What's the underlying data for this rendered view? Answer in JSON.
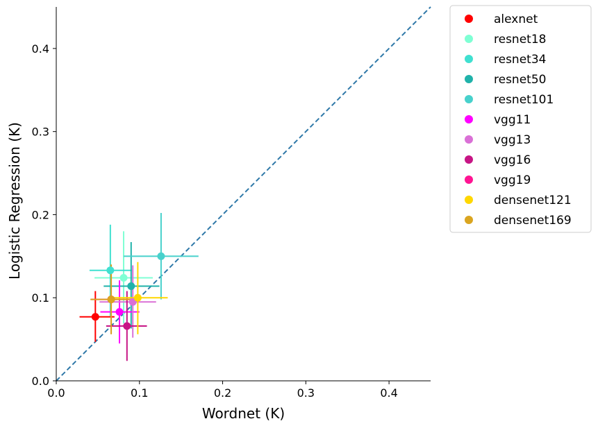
{
  "chart_data": {
    "type": "scatter",
    "title": "",
    "xlabel": "Wordnet (K)",
    "ylabel": "Logistic Regression (K)",
    "xlim": [
      0,
      0.45
    ],
    "ylim": [
      0,
      0.45
    ],
    "xticks": [
      "0.0",
      "0.1",
      "0.2",
      "0.3",
      "0.4"
    ],
    "yticks": [
      "0.0",
      "0.1",
      "0.2",
      "0.3",
      "0.4"
    ],
    "grid": false,
    "legend_position": "outside-top-right",
    "reference_line": {
      "type": "identity",
      "style": "dashed",
      "color": "#2e78a8"
    },
    "series": [
      {
        "name": "alexnet",
        "color": "#ff0000",
        "x": 0.047,
        "y": 0.077,
        "xerr": [
          0.028,
          0.07
        ],
        "yerr": [
          0.047,
          0.108
        ]
      },
      {
        "name": "resnet18",
        "color": "#7fffd4",
        "x": 0.081,
        "y": 0.124,
        "xerr": [
          0.046,
          0.116
        ],
        "yerr": [
          0.069,
          0.18
        ]
      },
      {
        "name": "resnet34",
        "color": "#40e0d0",
        "x": 0.065,
        "y": 0.133,
        "xerr": [
          0.04,
          0.091
        ],
        "yerr": [
          0.078,
          0.188
        ]
      },
      {
        "name": "resnet50",
        "color": "#20b2aa",
        "x": 0.09,
        "y": 0.114,
        "xerr": [
          0.057,
          0.124
        ],
        "yerr": [
          0.063,
          0.167
        ]
      },
      {
        "name": "resnet101",
        "color": "#48d1cc",
        "x": 0.126,
        "y": 0.15,
        "xerr": [
          0.081,
          0.171
        ],
        "yerr": [
          0.098,
          0.202
        ]
      },
      {
        "name": "vgg11",
        "color": "#ff00ff",
        "x": 0.076,
        "y": 0.083,
        "xerr": [
          0.053,
          0.1
        ],
        "yerr": [
          0.045,
          0.121
        ]
      },
      {
        "name": "vgg13",
        "color": "#da70d6",
        "x": 0.092,
        "y": 0.095,
        "xerr": [
          0.052,
          0.12
        ],
        "yerr": [
          0.052,
          0.139
        ]
      },
      {
        "name": "vgg16",
        "color": "#c71585",
        "x": 0.085,
        "y": 0.066,
        "xerr": [
          0.06,
          0.109
        ],
        "yerr": [
          0.024,
          0.108
        ]
      },
      {
        "name": "vgg19",
        "color": "#ff1493",
        "x": 0.066,
        "y": 0.098,
        "xerr": [
          0.042,
          0.09
        ],
        "yerr": [
          0.057,
          0.139
        ]
      },
      {
        "name": "densenet121",
        "color": "#ffd700",
        "x": 0.098,
        "y": 0.1,
        "xerr": [
          0.062,
          0.134
        ],
        "yerr": [
          0.056,
          0.143
        ]
      },
      {
        "name": "densenet169",
        "color": "#daa520",
        "x": 0.066,
        "y": 0.098,
        "xerr": [
          0.041,
          0.09
        ],
        "yerr": [
          0.056,
          0.14
        ]
      }
    ]
  }
}
